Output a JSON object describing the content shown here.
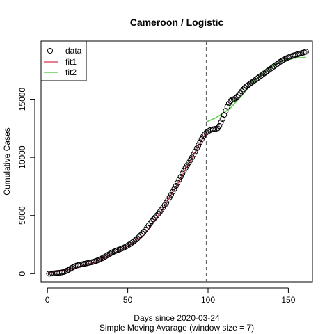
{
  "chart_data": {
    "type": "scatter",
    "title": "Cameroon / Logistic",
    "xlabel": "Days since 2020-03-24",
    "subtitle": "Simple Moving Avarage (window size = 7)",
    "ylabel": "Cumulative Cases",
    "xlim": [
      -4,
      165
    ],
    "ylim": [
      -700,
      20000
    ],
    "x_ticks": [
      0,
      50,
      100,
      150
    ],
    "y_ticks": [
      0,
      5000,
      10000,
      15000
    ],
    "vline_x": 99,
    "legend": {
      "position": "top-left",
      "entries": [
        {
          "label": "data",
          "symbol": "circle",
          "color": "#000000"
        },
        {
          "label": "fit1",
          "symbol": "line",
          "color": "#DF536B"
        },
        {
          "label": "fit2",
          "symbol": "line",
          "color": "#61D04F"
        }
      ]
    },
    "series": [
      {
        "name": "data",
        "color": "#000000",
        "points": [
          [
            1,
            0
          ],
          [
            2,
            10
          ],
          [
            3,
            20
          ],
          [
            4,
            30
          ],
          [
            5,
            45
          ],
          [
            6,
            60
          ],
          [
            7,
            75
          ],
          [
            8,
            90
          ],
          [
            9,
            110
          ],
          [
            10,
            140
          ],
          [
            11,
            190
          ],
          [
            12,
            250
          ],
          [
            13,
            320
          ],
          [
            14,
            400
          ],
          [
            15,
            480
          ],
          [
            16,
            560
          ],
          [
            17,
            630
          ],
          [
            18,
            690
          ],
          [
            19,
            730
          ],
          [
            20,
            760
          ],
          [
            21,
            790
          ],
          [
            22,
            820
          ],
          [
            23,
            850
          ],
          [
            24,
            880
          ],
          [
            25,
            910
          ],
          [
            26,
            940
          ],
          [
            27,
            970
          ],
          [
            28,
            1000
          ],
          [
            29,
            1040
          ],
          [
            30,
            1080
          ],
          [
            31,
            1130
          ],
          [
            32,
            1190
          ],
          [
            33,
            1250
          ],
          [
            34,
            1320
          ],
          [
            35,
            1400
          ],
          [
            36,
            1480
          ],
          [
            37,
            1560
          ],
          [
            38,
            1640
          ],
          [
            39,
            1720
          ],
          [
            40,
            1800
          ],
          [
            41,
            1870
          ],
          [
            42,
            1930
          ],
          [
            43,
            1990
          ],
          [
            44,
            2040
          ],
          [
            45,
            2090
          ],
          [
            46,
            2140
          ],
          [
            47,
            2200
          ],
          [
            48,
            2270
          ],
          [
            49,
            2340
          ],
          [
            50,
            2420
          ],
          [
            51,
            2510
          ],
          [
            52,
            2600
          ],
          [
            53,
            2700
          ],
          [
            54,
            2800
          ],
          [
            55,
            2910
          ],
          [
            56,
            3030
          ],
          [
            57,
            3160
          ],
          [
            58,
            3300
          ],
          [
            59,
            3450
          ],
          [
            60,
            3610
          ],
          [
            61,
            3780
          ],
          [
            62,
            3960
          ],
          [
            63,
            4140
          ],
          [
            64,
            4320
          ],
          [
            65,
            4500
          ],
          [
            66,
            4670
          ],
          [
            67,
            4830
          ],
          [
            68,
            4990
          ],
          [
            69,
            5150
          ],
          [
            70,
            5320
          ],
          [
            71,
            5500
          ],
          [
            72,
            5690
          ],
          [
            73,
            5890
          ],
          [
            74,
            6100
          ],
          [
            75,
            6320
          ],
          [
            76,
            6550
          ],
          [
            77,
            6790
          ],
          [
            78,
            7040
          ],
          [
            79,
            7290
          ],
          [
            80,
            7550
          ],
          [
            81,
            7810
          ],
          [
            82,
            8080
          ],
          [
            83,
            8340
          ],
          [
            84,
            8600
          ],
          [
            85,
            8850
          ],
          [
            86,
            9090
          ],
          [
            87,
            9320
          ],
          [
            88,
            9540
          ],
          [
            89,
            9760
          ],
          [
            90,
            9990
          ],
          [
            91,
            10240
          ],
          [
            92,
            10500
          ],
          [
            93,
            10770
          ],
          [
            94,
            11040
          ],
          [
            95,
            11300
          ],
          [
            96,
            11560
          ],
          [
            97,
            11800
          ],
          [
            98,
            12000
          ],
          [
            99,
            12150
          ],
          [
            100,
            12250
          ],
          [
            101,
            12320
          ],
          [
            102,
            12380
          ],
          [
            103,
            12420
          ],
          [
            104,
            12440
          ],
          [
            105,
            12460
          ],
          [
            106,
            12500
          ],
          [
            107,
            12700
          ],
          [
            108,
            13000
          ],
          [
            109,
            13300
          ],
          [
            110,
            13650
          ],
          [
            111,
            14000
          ],
          [
            112,
            14350
          ],
          [
            113,
            14650
          ],
          [
            114,
            14850
          ],
          [
            115,
            14950
          ],
          [
            116,
            15000
          ],
          [
            117,
            15080
          ],
          [
            118,
            15200
          ],
          [
            119,
            15350
          ],
          [
            120,
            15500
          ],
          [
            121,
            15680
          ],
          [
            122,
            15850
          ],
          [
            123,
            16000
          ],
          [
            124,
            16120
          ],
          [
            125,
            16220
          ],
          [
            126,
            16320
          ],
          [
            127,
            16420
          ],
          [
            128,
            16520
          ],
          [
            129,
            16620
          ],
          [
            130,
            16720
          ],
          [
            131,
            16820
          ],
          [
            132,
            16920
          ],
          [
            133,
            17020
          ],
          [
            134,
            17120
          ],
          [
            135,
            17220
          ],
          [
            136,
            17320
          ],
          [
            137,
            17420
          ],
          [
            138,
            17520
          ],
          [
            139,
            17620
          ],
          [
            140,
            17720
          ],
          [
            141,
            17820
          ],
          [
            142,
            17920
          ],
          [
            143,
            18020
          ],
          [
            144,
            18120
          ],
          [
            145,
            18220
          ],
          [
            146,
            18310
          ],
          [
            147,
            18390
          ],
          [
            148,
            18460
          ],
          [
            149,
            18530
          ],
          [
            150,
            18590
          ],
          [
            151,
            18650
          ],
          [
            152,
            18700
          ],
          [
            153,
            18750
          ],
          [
            154,
            18790
          ],
          [
            155,
            18830
          ],
          [
            156,
            18870
          ],
          [
            157,
            18910
          ],
          [
            158,
            18950
          ],
          [
            159,
            18990
          ],
          [
            160,
            19030
          ],
          [
            161,
            19080
          ]
        ]
      },
      {
        "name": "fit1",
        "color": "#DF536B",
        "points": [
          [
            1,
            100
          ],
          [
            10,
            260
          ],
          [
            20,
            600
          ],
          [
            30,
            1050
          ],
          [
            40,
            1650
          ],
          [
            50,
            2350
          ],
          [
            60,
            3300
          ],
          [
            70,
            5200
          ],
          [
            80,
            7450
          ],
          [
            90,
            9950
          ],
          [
            99,
            12200
          ]
        ]
      },
      {
        "name": "fit2",
        "color": "#61D04F",
        "points": [
          [
            99,
            13050
          ],
          [
            104,
            13350
          ],
          [
            109,
            13750
          ],
          [
            114,
            14250
          ],
          [
            120,
            15150
          ],
          [
            125,
            15950
          ],
          [
            130,
            16700
          ],
          [
            135,
            17350
          ],
          [
            140,
            17900
          ],
          [
            145,
            18250
          ],
          [
            150,
            18450
          ],
          [
            155,
            18550
          ],
          [
            161,
            18600
          ]
        ]
      }
    ]
  }
}
